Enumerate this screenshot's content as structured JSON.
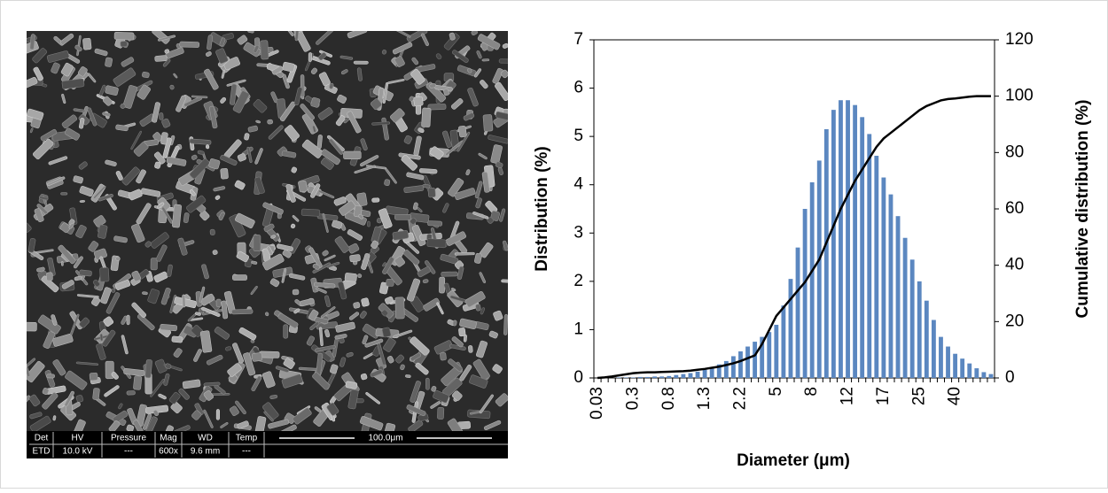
{
  "sem_image": {
    "info_headers": [
      "Det",
      "HV",
      "Pressure",
      "Mag",
      "WD",
      "Temp"
    ],
    "info_values": [
      "ETD",
      "10.0 kV",
      "---",
      "600x",
      "9.6 mm",
      "---"
    ],
    "scale_bar": "100.0μm"
  },
  "chart_data": {
    "type": "bar",
    "categories": [
      "0.03",
      null,
      null,
      null,
      null,
      "0.3",
      null,
      null,
      null,
      null,
      "0.8",
      null,
      null,
      null,
      null,
      "1.3",
      null,
      null,
      null,
      null,
      "2.2",
      null,
      null,
      null,
      null,
      "5",
      null,
      null,
      null,
      null,
      "8",
      null,
      null,
      null,
      null,
      "12",
      null,
      null,
      null,
      null,
      "17",
      null,
      null,
      null,
      null,
      "25",
      null,
      null,
      null,
      null,
      "40",
      null,
      null,
      null,
      null,
      null
    ],
    "series": [
      {
        "name": "Distribution",
        "type": "bar",
        "color": "#5b87c0",
        "values": [
          0,
          0,
          0,
          0.01,
          0.01,
          0.01,
          0.02,
          0.02,
          0.03,
          0.03,
          0.04,
          0.06,
          0.08,
          0.1,
          0.13,
          0.17,
          0.22,
          0.28,
          0.35,
          0.45,
          0.55,
          0.65,
          0.75,
          0.85,
          0.95,
          1.1,
          1.5,
          2.05,
          2.7,
          3.5,
          4.05,
          4.5,
          5.15,
          5.55,
          5.75,
          5.75,
          5.65,
          5.4,
          5.05,
          4.6,
          4.15,
          3.8,
          3.35,
          2.9,
          2.45,
          2.0,
          1.6,
          1.2,
          0.85,
          0.65,
          0.5,
          0.4,
          0.3,
          0.2,
          0.12,
          0.08
        ]
      },
      {
        "name": "Cumulative distribution",
        "type": "line",
        "color": "#000000",
        "axis": "y2",
        "values": [
          0,
          0.2,
          0.5,
          0.9,
          1.3,
          1.7,
          1.9,
          2,
          2,
          2.1,
          2.2,
          2.3,
          2.4,
          2.6,
          2.9,
          3.2,
          3.6,
          4,
          4.6,
          5.2,
          6,
          7,
          8,
          12,
          17,
          22,
          25,
          28,
          31,
          34,
          38,
          42,
          48,
          54,
          60,
          65,
          70,
          74,
          78,
          82,
          85,
          87,
          89,
          91,
          93,
          95,
          96.5,
          97.5,
          98.5,
          99,
          99.2,
          99.5,
          99.8,
          100,
          100,
          100
        ]
      }
    ],
    "x_label": "Diameter (μm)",
    "y_label": "Distribution (%)",
    "y2_label": "Cumulative distribution (%)",
    "ylim": [
      0,
      7
    ],
    "yticks": [
      0,
      1,
      2,
      3,
      4,
      5,
      6,
      7
    ],
    "y2lim": [
      0,
      120
    ],
    "y2ticks": [
      0,
      20,
      40,
      60,
      80,
      100,
      120
    ]
  }
}
